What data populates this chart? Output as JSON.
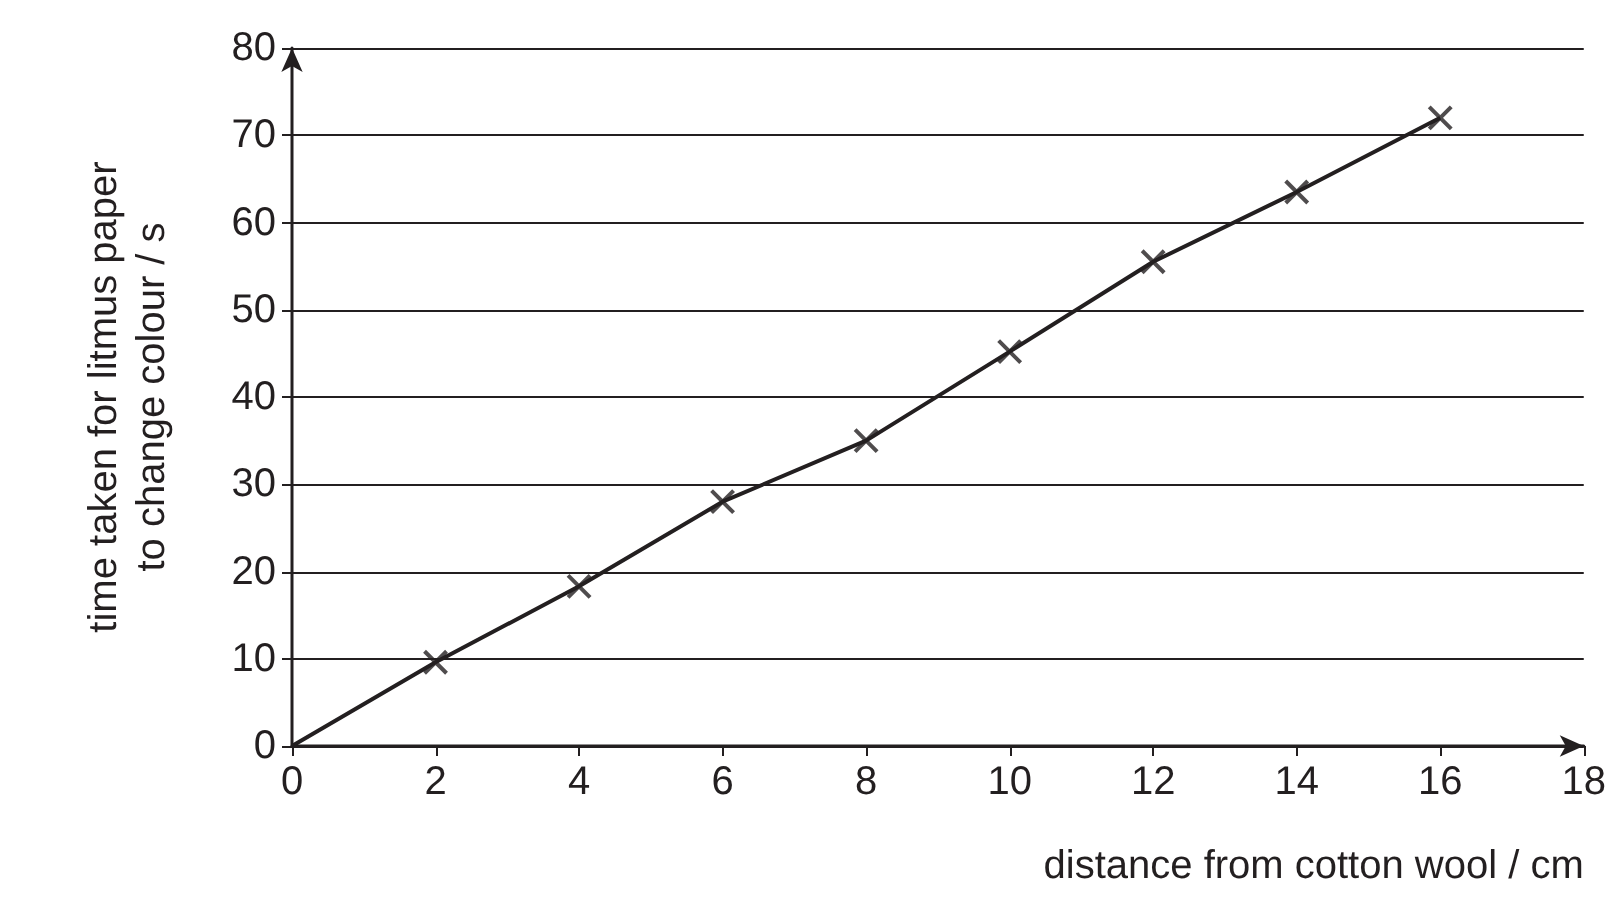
{
  "chart_data": {
    "type": "line",
    "xlabel": "distance from cotton wool / cm",
    "ylabel": "time taken for litmus paper\nto change colour / s",
    "series": [
      {
        "color": "#231f20",
        "x": [
          0,
          2,
          4,
          6,
          8,
          10,
          12,
          14,
          16
        ],
        "values": [
          0,
          9.6,
          18.3,
          28,
          35,
          45.2,
          55.5,
          63.5,
          72
        ],
        "marker": "none"
      },
      {
        "type": "scatter",
        "color": "#231f20",
        "x": [
          2,
          4,
          6,
          8,
          10,
          12,
          14,
          16
        ],
        "values": [
          9.6,
          18.3,
          28,
          35,
          45.2,
          55.5,
          63.5,
          72
        ],
        "marker": "cross"
      }
    ],
    "xlim": [
      0,
      18
    ],
    "xticks": [
      0,
      2,
      4,
      6,
      8,
      10,
      12,
      14,
      16,
      18
    ],
    "ylim": [
      0,
      80
    ],
    "yticks": [
      0,
      10,
      20,
      30,
      40,
      50,
      60,
      70,
      80
    ],
    "grid": "y"
  }
}
